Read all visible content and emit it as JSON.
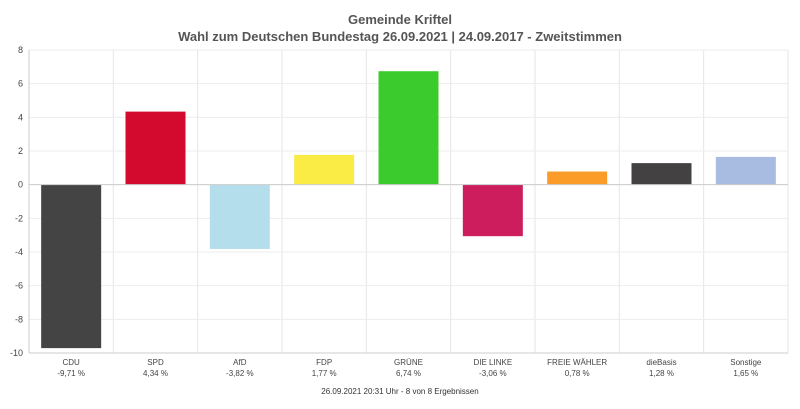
{
  "title_line1": "Gemeinde Kriftel",
  "title_line2": "Wahl zum Deutschen Bundestag 26.09.2021  | 24.09.2017 - Zweitstimmen",
  "footer": "26.09.2021 20:31 Uhr - 8 von 8 Ergebnissen",
  "chart_data": {
    "type": "bar",
    "title": "Gemeinde Kriftel",
    "subtitle": "Wahl zum Deutschen Bundestag 26.09.2021  | 24.09.2017 - Zweitstimmen",
    "xlabel": "",
    "ylabel": "",
    "ylim": [
      -10,
      8
    ],
    "yticks": [
      8,
      6,
      4,
      2,
      0,
      -2,
      -4,
      -6,
      -8,
      -10
    ],
    "grid": true,
    "categories": [
      "CDU",
      "SPD",
      "AfD",
      "FDP",
      "GRÜNE",
      "DIE LINKE",
      "FREIE WÄHLER",
      "dieBasis",
      "Sonstige"
    ],
    "values": [
      -9.71,
      4.34,
      -3.82,
      1.77,
      6.74,
      -3.06,
      0.78,
      1.28,
      1.65
    ],
    "value_labels": [
      "-9,71 %",
      "4,34 %",
      "-3,82 %",
      "1,77 %",
      "6,74 %",
      "-3,06 %",
      "0,78 %",
      "1,28 %",
      "1,65 %"
    ],
    "colors": [
      "#444444",
      "#d4092e",
      "#b5deec",
      "#fbeb45",
      "#3ccb2c",
      "#cd1d5c",
      "#fa9c27",
      "#444142",
      "#a8bce2"
    ]
  }
}
